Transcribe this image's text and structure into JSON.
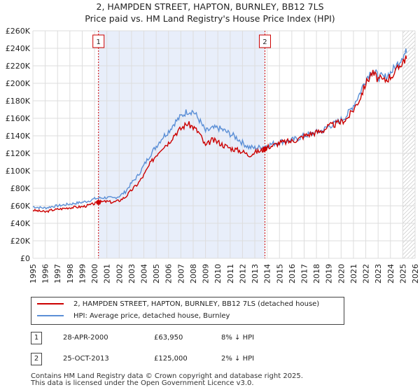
{
  "title_line1": "2, HAMPDEN STREET, HAPTON, BURNLEY, BB12 7LS",
  "title_line2": "Price paid vs. HM Land Registry's House Price Index (HPI)",
  "colors": {
    "property": "#cc0000",
    "hpi": "#5b8fd6",
    "shade": "#e8eefa",
    "grid": "#dddddd"
  },
  "chart_data": {
    "type": "line",
    "title": "2, HAMPDEN STREET, HAPTON, BURNLEY, BB12 7LS — Price paid vs. HM Land Registry's House Price Index (HPI)",
    "xlabel": "",
    "ylabel": "",
    "xlim": [
      1995,
      2026
    ],
    "ylim": [
      0,
      260000
    ],
    "x_ticks": [
      1995,
      1996,
      1997,
      1998,
      1999,
      2000,
      2001,
      2002,
      2003,
      2004,
      2005,
      2006,
      2007,
      2008,
      2009,
      2010,
      2011,
      2012,
      2013,
      2014,
      2015,
      2016,
      2017,
      2018,
      2019,
      2020,
      2021,
      2022,
      2023,
      2024,
      2025,
      2026
    ],
    "y_ticks": [
      {
        "value": 0,
        "label": "£0"
      },
      {
        "value": 20000,
        "label": "£20K"
      },
      {
        "value": 40000,
        "label": "£40K"
      },
      {
        "value": 60000,
        "label": "£60K"
      },
      {
        "value": 80000,
        "label": "£80K"
      },
      {
        "value": 100000,
        "label": "£100K"
      },
      {
        "value": 120000,
        "label": "£120K"
      },
      {
        "value": 140000,
        "label": "£140K"
      },
      {
        "value": 160000,
        "label": "£160K"
      },
      {
        "value": 180000,
        "label": "£180K"
      },
      {
        "value": 200000,
        "label": "£200K"
      },
      {
        "value": 220000,
        "label": "£220K"
      },
      {
        "value": 240000,
        "label": "£240K"
      },
      {
        "value": 260000,
        "label": "£260K"
      }
    ],
    "grid": true,
    "series": [
      {
        "name": "2, HAMPDEN STREET, HAPTON, BURNLEY, BB12 7LS (detached house)",
        "color": "#cc0000",
        "x": [
          1995.0,
          1995.5,
          1996.0,
          1996.5,
          1997.0,
          1997.5,
          1998.0,
          1998.5,
          1999.0,
          1999.5,
          2000.0,
          2000.33,
          2000.5,
          2001.0,
          2001.5,
          2002.0,
          2002.5,
          2003.0,
          2003.5,
          2004.0,
          2004.5,
          2005.0,
          2005.5,
          2006.0,
          2006.5,
          2007.0,
          2007.5,
          2008.0,
          2008.5,
          2009.0,
          2009.5,
          2010.0,
          2010.5,
          2011.0,
          2011.5,
          2012.0,
          2012.5,
          2013.0,
          2013.5,
          2013.82,
          2014.0,
          2014.5,
          2015.0,
          2015.5,
          2016.0,
          2016.5,
          2017.0,
          2017.5,
          2018.0,
          2018.5,
          2019.0,
          2019.5,
          2020.0,
          2020.5,
          2021.0,
          2021.5,
          2022.0,
          2022.5,
          2023.0,
          2023.5,
          2024.0,
          2024.5,
          2025.0,
          2025.3
        ],
        "y": [
          55000,
          54000,
          53000,
          55000,
          56000,
          57000,
          58000,
          58500,
          59000,
          60500,
          62500,
          63950,
          64500,
          65000,
          64000,
          66000,
          70000,
          78000,
          85000,
          95000,
          108000,
          118000,
          127000,
          132000,
          142000,
          148000,
          154000,
          150000,
          143000,
          128000,
          135000,
          133000,
          129000,
          126000,
          124000,
          122000,
          118000,
          121000,
          123000,
          125000,
          127000,
          129000,
          132000,
          133000,
          134000,
          136000,
          140000,
          142000,
          144000,
          146000,
          151000,
          153000,
          156000,
          160000,
          170000,
          182000,
          200000,
          212000,
          205000,
          203000,
          208000,
          214000,
          226000,
          228000
        ]
      },
      {
        "name": "HPI: Average price, detached house, Burnley",
        "color": "#5b8fd6",
        "x": [
          1995.0,
          1995.5,
          1996.0,
          1996.5,
          1997.0,
          1997.5,
          1998.0,
          1998.5,
          1999.0,
          1999.5,
          2000.0,
          2000.5,
          2001.0,
          2001.5,
          2002.0,
          2002.5,
          2003.0,
          2003.5,
          2004.0,
          2004.5,
          2005.0,
          2005.5,
          2006.0,
          2006.5,
          2007.0,
          2007.5,
          2008.0,
          2008.5,
          2009.0,
          2009.5,
          2010.0,
          2010.5,
          2011.0,
          2011.5,
          2012.0,
          2012.5,
          2013.0,
          2013.5,
          2014.0,
          2014.5,
          2015.0,
          2015.5,
          2016.0,
          2016.5,
          2017.0,
          2017.5,
          2018.0,
          2018.5,
          2019.0,
          2019.5,
          2020.0,
          2020.5,
          2021.0,
          2021.5,
          2022.0,
          2022.5,
          2023.0,
          2023.5,
          2024.0,
          2024.5,
          2025.0,
          2025.3
        ],
        "y": [
          59000,
          58000,
          57500,
          59000,
          60000,
          61000,
          62000,
          63000,
          64000,
          65500,
          68000,
          69000,
          69500,
          68500,
          71000,
          76000,
          86000,
          94000,
          106000,
          118000,
          128000,
          138000,
          145000,
          155000,
          162000,
          168000,
          168000,
          158000,
          145000,
          148000,
          149000,
          146000,
          142000,
          138000,
          132000,
          127000,
          126000,
          127000,
          129000,
          131000,
          133000,
          134000,
          135000,
          137000,
          140000,
          142000,
          144000,
          146000,
          151000,
          154000,
          158000,
          164000,
          175000,
          188000,
          205000,
          215000,
          208000,
          206000,
          212000,
          220000,
          232000,
          235000
        ]
      }
    ],
    "annotations": [
      {
        "label": "1",
        "x": 2000.32
      },
      {
        "label": "2",
        "x": 2013.82
      }
    ],
    "shaded_range": [
      2000.32,
      2013.82
    ],
    "forecast_from": 2025.0
  },
  "legend": {
    "property_label": "2, HAMPDEN STREET, HAPTON, BURNLEY, BB12 7LS (detached house)",
    "hpi_label": "HPI: Average price, detached house, Burnley"
  },
  "transactions": [
    {
      "num": "1",
      "date": "28-APR-2000",
      "price": "£63,950",
      "hpi": "8% ↓ HPI"
    },
    {
      "num": "2",
      "date": "25-OCT-2013",
      "price": "£125,000",
      "hpi": "2% ↓ HPI"
    }
  ],
  "footer_line1": "Contains HM Land Registry data © Crown copyright and database right 2025.",
  "footer_line2": "This data is licensed under the Open Government Licence v3.0."
}
